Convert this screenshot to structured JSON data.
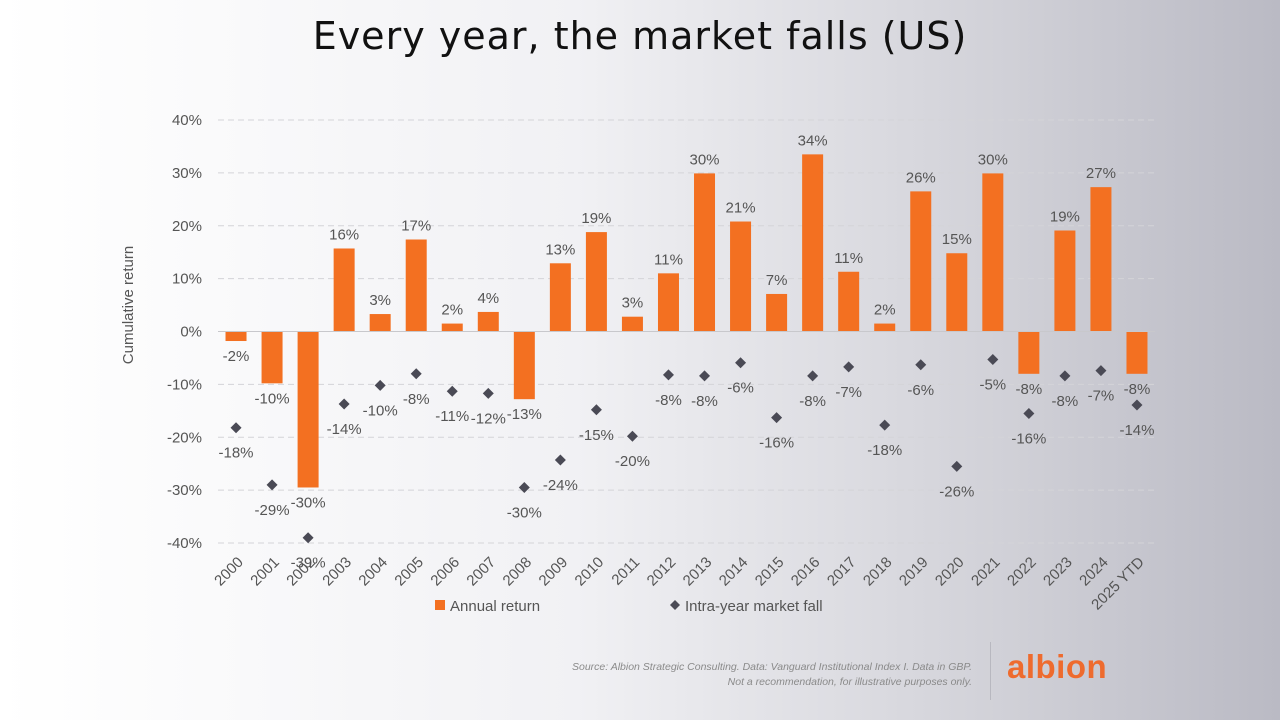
{
  "title": "Every year, the market falls (US)",
  "source": {
    "line1": "Source: Albion Strategic Consulting. Data: Vanguard Institutional Index I. Data in GBP.",
    "line2": "Not a recommendation, for illustrative purposes only."
  },
  "logo_text": "albion",
  "colors": {
    "bar": "#f37021",
    "marker": "#4a4a55",
    "text": "#555555",
    "grid": "#d4d4d8",
    "axis": "#c8c8cc",
    "logo": "#ee6b2e"
  },
  "chart_data": {
    "type": "bar",
    "ylabel": "Cumulative return",
    "xlabel": "",
    "ylim": [
      -40,
      40
    ],
    "yticks": [
      40,
      30,
      20,
      10,
      0,
      -10,
      -20,
      -30,
      -40
    ],
    "ytick_labels": [
      "40%",
      "30%",
      "20%",
      "10%",
      "0%",
      "-10%",
      "-20%",
      "-30%",
      "-40%"
    ],
    "grid": true,
    "legend_position": "bottom",
    "categories": [
      "2000",
      "2001",
      "2002",
      "2003",
      "2004",
      "2005",
      "2006",
      "2007",
      "2008",
      "2009",
      "2010",
      "2011",
      "2012",
      "2013",
      "2014",
      "2015",
      "2016",
      "2017",
      "2018",
      "2019",
      "2020",
      "2021",
      "2022",
      "2023",
      "2024",
      "2025 YTD"
    ],
    "series": [
      {
        "name": "Annual return",
        "type": "bar",
        "values": [
          -1.8,
          -9.8,
          -29.5,
          15.7,
          3.3,
          17.4,
          1.5,
          3.7,
          -12.8,
          12.9,
          18.8,
          2.8,
          11.0,
          29.9,
          20.8,
          7.1,
          33.5,
          11.3,
          1.5,
          26.5,
          14.8,
          29.9,
          -8.0,
          19.1,
          27.3,
          -8.0
        ],
        "labels": [
          "-2%",
          "-10%",
          "-30%",
          "16%",
          "3%",
          "17%",
          "2%",
          "4%",
          "-13%",
          "13%",
          "19%",
          "3%",
          "11%",
          "30%",
          "21%",
          "7%",
          "34%",
          "11%",
          "2%",
          "26%",
          "15%",
          "30%",
          "-8%",
          "19%",
          "27%",
          "-8%"
        ]
      },
      {
        "name": "Intra-year market fall",
        "type": "scatter",
        "values": [
          -18.2,
          -29.0,
          -39.0,
          -13.7,
          -10.2,
          -8.0,
          -11.3,
          -11.7,
          -29.5,
          -24.3,
          -14.8,
          -19.8,
          -8.2,
          -8.4,
          -5.9,
          -16.3,
          -8.4,
          -6.7,
          -17.7,
          -6.3,
          -25.5,
          -5.3,
          -15.5,
          -8.4,
          -7.4,
          -13.9
        ],
        "labels": [
          "-18%",
          "-29%",
          "-39%",
          "-14%",
          "-10%",
          "-8%",
          "-11%",
          "-12%",
          "-30%",
          "-24%",
          "-15%",
          "-20%",
          "-8%",
          "-8%",
          "-6%",
          "-16%",
          "-8%",
          "-7%",
          "-18%",
          "-6%",
          "-26%",
          "-5%",
          "-16%",
          "-8%",
          "-7%",
          "-14%"
        ]
      }
    ]
  }
}
